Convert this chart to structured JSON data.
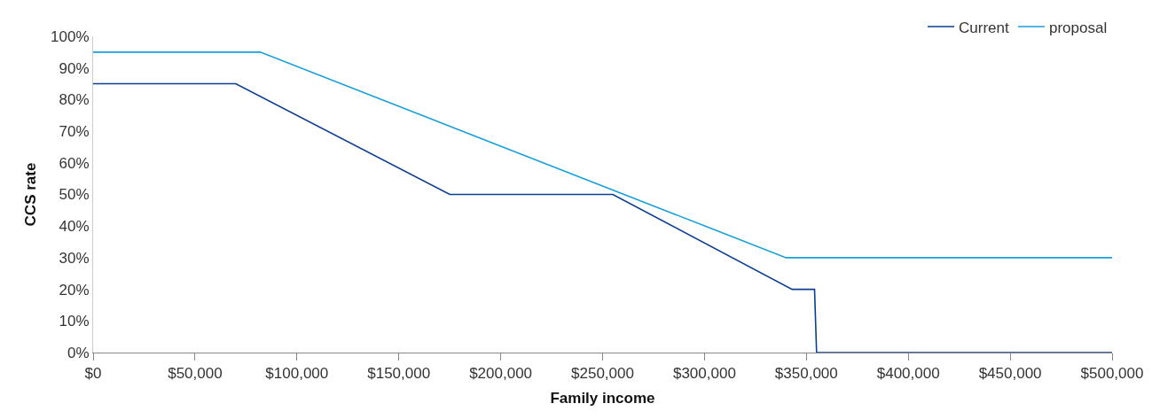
{
  "chart_data": {
    "type": "line",
    "xlabel": "Family income",
    "ylabel": "CCS rate",
    "series": [
      {
        "name": "Current",
        "color": "#0b3d91",
        "x": [
          0,
          70000,
          175000,
          255000,
          343000,
          354000,
          355000,
          500000
        ],
        "values": [
          85,
          85,
          50,
          50,
          20,
          20,
          0,
          0
        ]
      },
      {
        "name": "proposal",
        "color": "#1a9fdb",
        "x": [
          0,
          82000,
          340000,
          500000
        ],
        "values": [
          95,
          95,
          30,
          30
        ]
      }
    ],
    "xlim": [
      0,
      500000
    ],
    "xticks": [
      {
        "value": 0,
        "label": "$0"
      },
      {
        "value": 50000,
        "label": "$50,000"
      },
      {
        "value": 100000,
        "label": "$100,000"
      },
      {
        "value": 150000,
        "label": "$150,000"
      },
      {
        "value": 200000,
        "label": "$200,000"
      },
      {
        "value": 250000,
        "label": "$250,000"
      },
      {
        "value": 300000,
        "label": "$300,000"
      },
      {
        "value": 350000,
        "label": "$350,000"
      },
      {
        "value": 400000,
        "label": "$400,000"
      },
      {
        "value": 450000,
        "label": "$450,000"
      },
      {
        "value": 500000,
        "label": "$500,000"
      }
    ],
    "ylim": [
      0,
      100
    ],
    "yticks": [
      {
        "value": 0,
        "label": "0%"
      },
      {
        "value": 10,
        "label": "10%"
      },
      {
        "value": 20,
        "label": "20%"
      },
      {
        "value": 30,
        "label": "30%"
      },
      {
        "value": 40,
        "label": "40%"
      },
      {
        "value": 50,
        "label": "50%"
      },
      {
        "value": 60,
        "label": "60%"
      },
      {
        "value": 70,
        "label": "70%"
      },
      {
        "value": 80,
        "label": "80%"
      },
      {
        "value": 90,
        "label": "90%"
      },
      {
        "value": 100,
        "label": "100%"
      }
    ],
    "grid": false,
    "legend": "top right",
    "marker": "none",
    "line_style": "solid"
  }
}
